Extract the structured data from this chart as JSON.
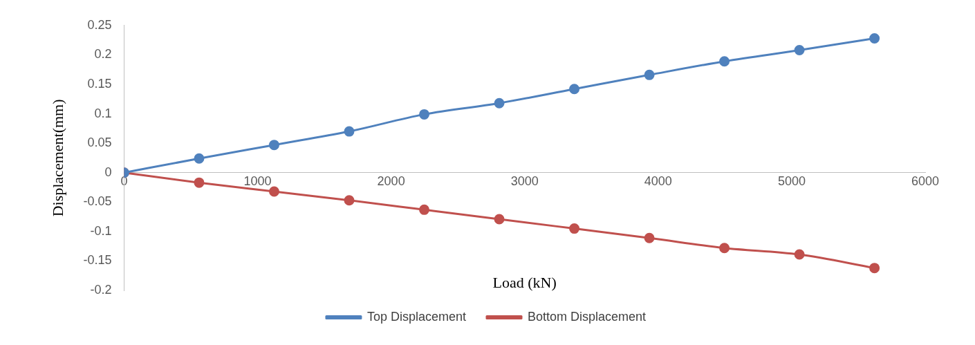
{
  "chart_data": {
    "type": "line",
    "xlabel": "Load (kN)",
    "ylabel": "Displacement(mm)",
    "x": [
      0,
      562,
      1124,
      1686,
      2248,
      2810,
      3372,
      3934,
      4496,
      5058,
      5620
    ],
    "series": [
      {
        "name": "Top Displacement",
        "color": "#4f81bd",
        "values": [
          0,
          0.024,
          0.047,
          0.07,
          0.099,
          0.118,
          0.142,
          0.166,
          0.189,
          0.208,
          0.228
        ]
      },
      {
        "name": "Bottom Displacement",
        "color": "#c0504d",
        "values": [
          0,
          -0.017,
          -0.032,
          -0.047,
          -0.063,
          -0.079,
          -0.095,
          -0.111,
          -0.128,
          -0.139,
          -0.162
        ]
      }
    ],
    "xlim": [
      0,
      6000
    ],
    "xticks": [
      0,
      1000,
      2000,
      3000,
      4000,
      5000,
      6000
    ],
    "ylim": [
      -0.2,
      0.25
    ],
    "yticks": [
      -0.2,
      -0.15,
      -0.1,
      -0.05,
      0,
      0.05,
      0.1,
      0.15,
      0.2,
      0.25
    ],
    "grid": false,
    "legend": "bottom",
    "marker": "circle",
    "line_style": "solid"
  }
}
